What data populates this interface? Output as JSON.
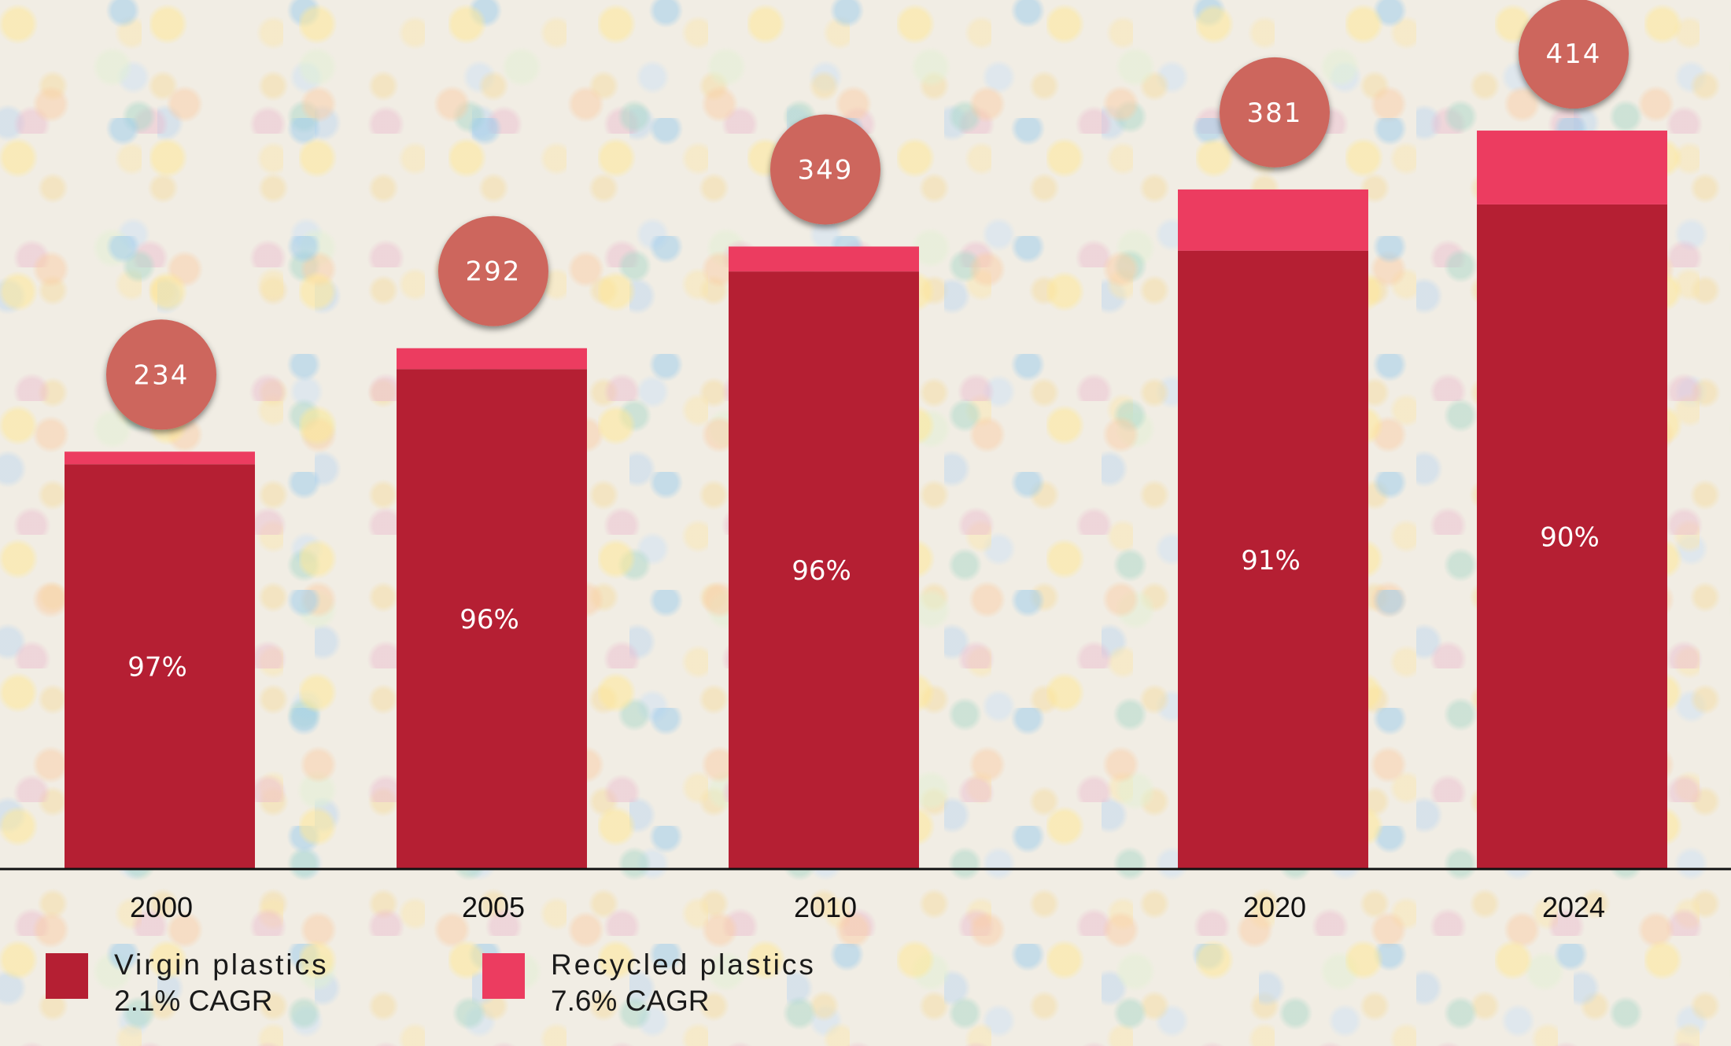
{
  "chart_data": {
    "type": "bar",
    "stacked": true,
    "categories": [
      "2000",
      "2005",
      "2010",
      "2020",
      "2024"
    ],
    "totals": [
      234,
      292,
      349,
      381,
      414
    ],
    "virgin_share_labels": [
      "97%",
      "96%",
      "96%",
      "91%",
      "90%"
    ],
    "series": [
      {
        "name": "Virgin plastics",
        "values": [
          226.98,
          280.32,
          335.04,
          346.71,
          372.6
        ]
      },
      {
        "name": "Recycled plastics",
        "values": [
          7.02,
          11.68,
          13.96,
          34.29,
          41.4
        ]
      }
    ],
    "ylim": [
      0,
      420
    ],
    "colors": {
      "virgin": "#b51f33",
      "recycled": "#ec3c60",
      "bubble": "#cd665d",
      "axis": "#111111"
    }
  },
  "legend": [
    {
      "name": "Virgin plastics",
      "cagr": "2.1% CAGR",
      "color": "#b51f33"
    },
    {
      "name": "Recycled plastics",
      "cagr": "7.6% CAGR",
      "color": "#ec3c60"
    }
  ]
}
